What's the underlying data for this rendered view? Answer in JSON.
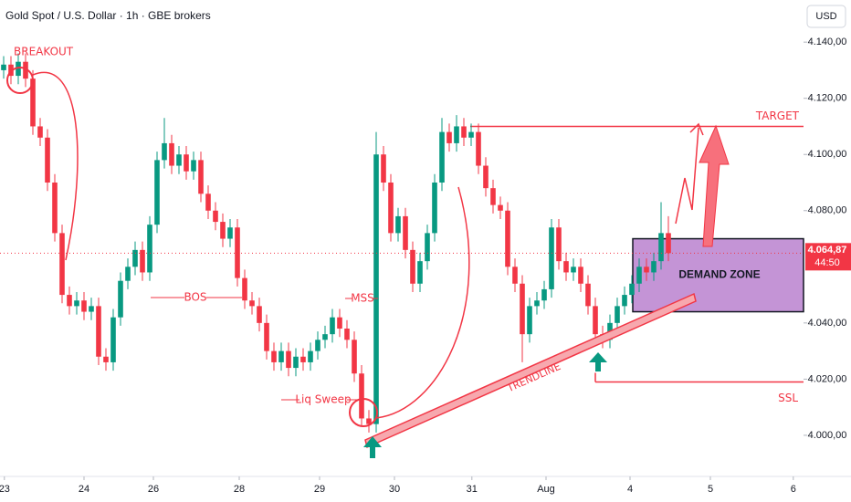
{
  "chart_data": {
    "type": "candlestick",
    "title": "Gold Spot / U.S. Dollar · 1h · GBE brokers",
    "currency": "USD",
    "up_color": "#089981",
    "down_color": "#f23645",
    "xlim": [
      0,
      110
    ],
    "ylim": [
      3986,
      4155
    ],
    "xticks": [
      {
        "value": 0.6,
        "label": "23"
      },
      {
        "value": 11.5,
        "label": "24"
      },
      {
        "value": 21,
        "label": "26"
      },
      {
        "value": 32.75,
        "label": "28"
      },
      {
        "value": 43.75,
        "label": "29"
      },
      {
        "value": 54,
        "label": "30"
      },
      {
        "value": 64.6,
        "label": "31"
      },
      {
        "value": 74.75,
        "label": "Aug"
      },
      {
        "value": 86.25,
        "label": "4"
      },
      {
        "value": 97.25,
        "label": "5"
      },
      {
        "value": 108.6,
        "label": "6"
      }
    ],
    "yticks": [
      {
        "value": 4140,
        "label": "4.140,00"
      },
      {
        "value": 4120,
        "label": "4.120,00"
      },
      {
        "value": 4100,
        "label": "4.100,00"
      },
      {
        "value": 4080,
        "label": "4.080,00"
      },
      {
        "value": 4040,
        "label": "4.040,00"
      },
      {
        "value": 4020,
        "label": "4.020,00"
      },
      {
        "value": 4000,
        "label": "4.000,00"
      }
    ],
    "open": [
      4130,
      4132,
      4128,
      4133,
      4127,
      4110,
      4106,
      4090,
      4072,
      4050,
      4046,
      4048,
      4044,
      4046,
      4028,
      4026,
      4042,
      4055,
      4060,
      4066,
      4058,
      4075,
      4098,
      4104,
      4096,
      4100,
      4094,
      4098,
      4086,
      4080,
      4076,
      4070,
      4074,
      4056,
      4048,
      4046,
      4040,
      4030,
      4026,
      4030,
      4024,
      4028,
      4026,
      4030,
      4034,
      4036,
      4042,
      4038,
      4034,
      4022,
      4006,
      4004,
      4100,
      4090,
      4072,
      4078,
      4066,
      4054,
      4062,
      4072,
      4090,
      4108,
      4104,
      4110,
      4106,
      4108,
      4096,
      4088,
      4082,
      4080,
      4060,
      4054,
      4036,
      4046,
      4048,
      4052,
      4074,
      4062,
      4058,
      4060,
      4054,
      4046,
      4036,
      4034,
      4040,
      4046,
      4050,
      4054,
      4060,
      4058,
      4062,
      4072
    ],
    "high": [
      4135,
      4135,
      4136,
      4136,
      4130,
      4113,
      4109,
      4093,
      4075,
      4053,
      4051,
      4051,
      4049,
      4049,
      4031,
      4045,
      4058,
      4063,
      4069,
      4069,
      4078,
      4101,
      4113,
      4107,
      4103,
      4103,
      4101,
      4101,
      4089,
      4083,
      4079,
      4077,
      4077,
      4059,
      4051,
      4049,
      4043,
      4033,
      4033,
      4033,
      4031,
      4031,
      4033,
      4037,
      4039,
      4045,
      4045,
      4041,
      4037,
      4025,
      4009,
      4108,
      4103,
      4093,
      4081,
      4081,
      4069,
      4065,
      4075,
      4093,
      4113,
      4111,
      4114,
      4113,
      4111,
      4111,
      4099,
      4091,
      4085,
      4083,
      4063,
      4057,
      4049,
      4051,
      4055,
      4077,
      4077,
      4065,
      4063,
      4063,
      4057,
      4049,
      4039,
      4043,
      4049,
      4053,
      4057,
      4063,
      4063,
      4065,
      4083,
      4078
    ],
    "low": [
      4127,
      4125,
      4125,
      4124,
      4107,
      4103,
      4087,
      4069,
      4047,
      4043,
      4043,
      4041,
      4041,
      4025,
      4023,
      4023,
      4039,
      4052,
      4057,
      4055,
      4055,
      4072,
      4095,
      4093,
      4093,
      4091,
      4091,
      4083,
      4077,
      4073,
      4067,
      4067,
      4053,
      4045,
      4043,
      4037,
      4027,
      4023,
      4023,
      4021,
      4021,
      4023,
      4023,
      4027,
      4031,
      4033,
      4035,
      4031,
      4019,
      4003,
      4001,
      4001,
      4087,
      4069,
      4069,
      4063,
      4051,
      4051,
      4059,
      4069,
      4087,
      4101,
      4101,
      4103,
      4103,
      4093,
      4085,
      4079,
      4077,
      4057,
      4051,
      4026,
      4033,
      4043,
      4045,
      4049,
      4059,
      4055,
      4055,
      4051,
      4043,
      4033,
      4031,
      4031,
      4037,
      4043,
      4047,
      4051,
      4055,
      4055,
      4059,
      4062
    ],
    "close": [
      4132,
      4128,
      4133,
      4127,
      4110,
      4106,
      4090,
      4072,
      4050,
      4046,
      4048,
      4044,
      4046,
      4028,
      4026,
      4042,
      4055,
      4060,
      4066,
      4058,
      4075,
      4098,
      4104,
      4096,
      4100,
      4094,
      4098,
      4086,
      4080,
      4076,
      4070,
      4074,
      4056,
      4048,
      4046,
      4040,
      4030,
      4026,
      4030,
      4024,
      4028,
      4026,
      4030,
      4034,
      4036,
      4042,
      4038,
      4034,
      4022,
      4006,
      4004,
      4100,
      4090,
      4072,
      4078,
      4066,
      4054,
      4062,
      4072,
      4090,
      4108,
      4104,
      4110,
      4106,
      4108,
      4096,
      4088,
      4082,
      4080,
      4060,
      4054,
      4036,
      4046,
      4048,
      4052,
      4074,
      4062,
      4058,
      4060,
      4054,
      4046,
      4036,
      4034,
      4040,
      4046,
      4050,
      4054,
      4060,
      4058,
      4062,
      4072,
      4064.87
    ],
    "last_price": {
      "value": 4064.87,
      "label": "4.064,87",
      "countdown": "44:50"
    },
    "target": {
      "label": "TARGET",
      "value": 4110
    },
    "ssl": {
      "label": "SSL",
      "value": 4019
    },
    "demand_zone": {
      "label": "DEMAND ZONE",
      "range": [
        4044,
        4070
      ]
    },
    "annotations": {
      "breakout": "BREAKOUT",
      "bos": "BOS",
      "mss": "MSS",
      "liq_sweep": "Liq Sweep",
      "trendline": "TRENDLINE"
    },
    "annotation_color": "#f23645"
  }
}
